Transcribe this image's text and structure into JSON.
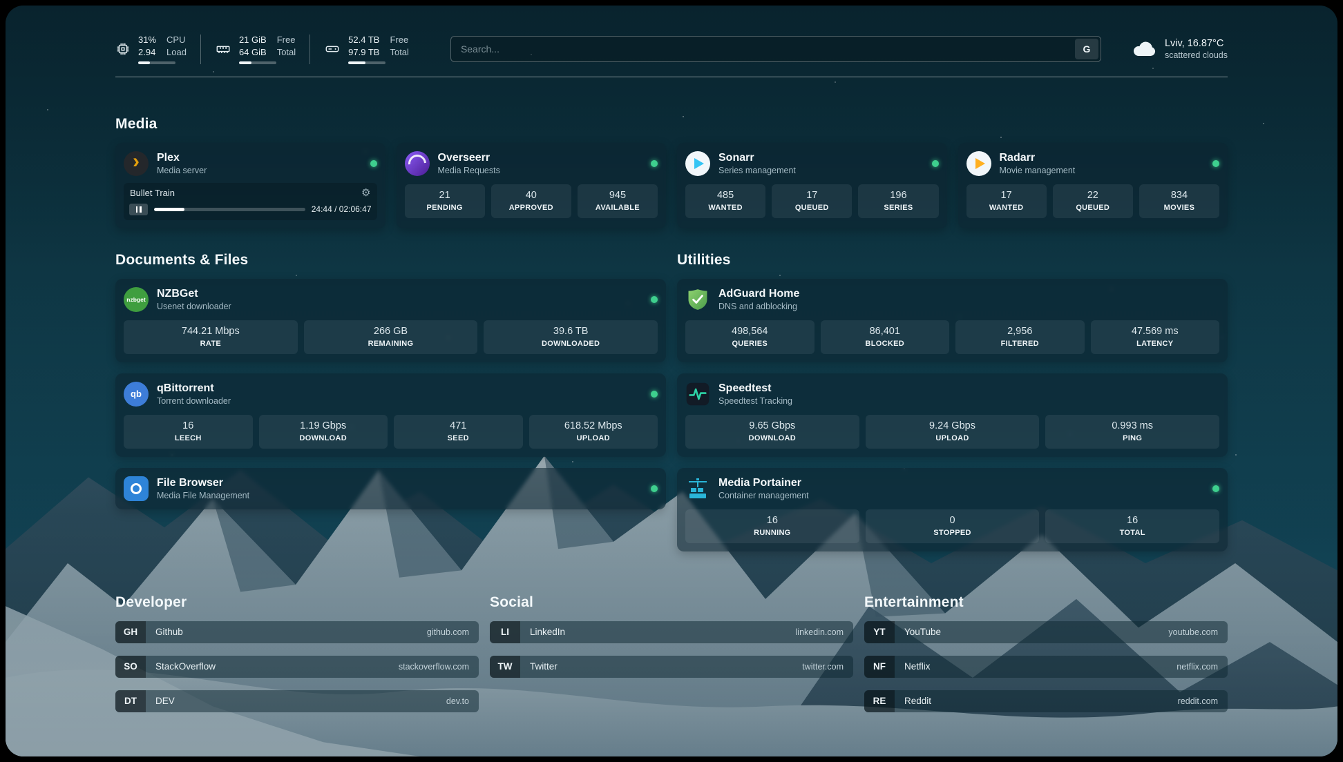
{
  "topbar": {
    "resources": [
      {
        "id": "cpu",
        "value_top": "31%",
        "value_bottom": "2.94",
        "label_top": "CPU",
        "label_bottom": "Load",
        "percent": 31
      },
      {
        "id": "memory",
        "value_top": "21 GiB",
        "value_bottom": "64 GiB",
        "label_top": "Free",
        "label_bottom": "Total",
        "percent": 33
      },
      {
        "id": "disk",
        "value_top": "52.4 TB",
        "value_bottom": "97.9 TB",
        "label_top": "Free",
        "label_bottom": "Total",
        "percent": 46
      }
    ],
    "search": {
      "placeholder": "Search...",
      "engine_button": "G"
    },
    "weather": {
      "location": "Lviv, 16.87°C",
      "condition": "scattered clouds"
    }
  },
  "media": {
    "title": "Media",
    "plex": {
      "name": "Plex",
      "description": "Media server",
      "status": "online",
      "now_playing": {
        "title": "Bullet Train",
        "time": "24:44 / 02:06:47",
        "progress_percent": 20
      }
    },
    "overseerr": {
      "name": "Overseerr",
      "description": "Media Requests",
      "status": "online",
      "stats": [
        {
          "value": "21",
          "label": "PENDING"
        },
        {
          "value": "40",
          "label": "APPROVED"
        },
        {
          "value": "945",
          "label": "AVAILABLE"
        }
      ]
    },
    "sonarr": {
      "name": "Sonarr",
      "description": "Series management",
      "status": "online",
      "stats": [
        {
          "value": "485",
          "label": "WANTED"
        },
        {
          "value": "17",
          "label": "QUEUED"
        },
        {
          "value": "196",
          "label": "SERIES"
        }
      ]
    },
    "radarr": {
      "name": "Radarr",
      "description": "Movie management",
      "status": "online",
      "stats": [
        {
          "value": "17",
          "label": "WANTED"
        },
        {
          "value": "22",
          "label": "QUEUED"
        },
        {
          "value": "834",
          "label": "MOVIES"
        }
      ]
    }
  },
  "documents": {
    "title": "Documents & Files",
    "nzbget": {
      "name": "NZBGet",
      "description": "Usenet downloader",
      "status": "online",
      "icon_text": "nzbget",
      "stats": [
        {
          "value": "744.21 Mbps",
          "label": "RATE"
        },
        {
          "value": "266 GB",
          "label": "REMAINING"
        },
        {
          "value": "39.6 TB",
          "label": "DOWNLOADED"
        }
      ]
    },
    "qbittorrent": {
      "name": "qBittorrent",
      "description": "Torrent downloader",
      "status": "online",
      "icon_text": "qb",
      "stats": [
        {
          "value": "16",
          "label": "LEECH"
        },
        {
          "value": "1.19 Gbps",
          "label": "DOWNLOAD"
        },
        {
          "value": "471",
          "label": "SEED"
        },
        {
          "value": "618.52 Mbps",
          "label": "UPLOAD"
        }
      ]
    },
    "filebrowser": {
      "name": "File Browser",
      "description": "Media File Management",
      "status": "online"
    }
  },
  "utilities": {
    "title": "Utilities",
    "adguard": {
      "name": "AdGuard Home",
      "description": "DNS and adblocking",
      "stats": [
        {
          "value": "498,564",
          "label": "QUERIES"
        },
        {
          "value": "86,401",
          "label": "BLOCKED"
        },
        {
          "value": "2,956",
          "label": "FILTERED"
        },
        {
          "value": "47.569 ms",
          "label": "LATENCY"
        }
      ]
    },
    "speedtest": {
      "name": "Speedtest",
      "description": "Speedtest Tracking",
      "stats": [
        {
          "value": "9.65 Gbps",
          "label": "DOWNLOAD"
        },
        {
          "value": "9.24 Gbps",
          "label": "UPLOAD"
        },
        {
          "value": "0.993 ms",
          "label": "PING"
        }
      ]
    },
    "portainer": {
      "name": "Media Portainer",
      "description": "Container management",
      "status": "online",
      "stats": [
        {
          "value": "16",
          "label": "RUNNING"
        },
        {
          "value": "0",
          "label": "STOPPED"
        },
        {
          "value": "16",
          "label": "TOTAL"
        }
      ]
    }
  },
  "bookmarks": [
    {
      "title": "Developer",
      "items": [
        {
          "abbr": "GH",
          "name": "Github",
          "domain": "github.com"
        },
        {
          "abbr": "SO",
          "name": "StackOverflow",
          "domain": "stackoverflow.com"
        },
        {
          "abbr": "DT",
          "name": "DEV",
          "domain": "dev.to"
        }
      ]
    },
    {
      "title": "Social",
      "items": [
        {
          "abbr": "LI",
          "name": "LinkedIn",
          "domain": "linkedin.com"
        },
        {
          "abbr": "TW",
          "name": "Twitter",
          "domain": "twitter.com"
        }
      ]
    },
    {
      "title": "Entertainment",
      "items": [
        {
          "abbr": "YT",
          "name": "YouTube",
          "domain": "youtube.com"
        },
        {
          "abbr": "NF",
          "name": "Netflix",
          "domain": "netflix.com"
        },
        {
          "abbr": "RE",
          "name": "Reddit",
          "domain": "reddit.com"
        }
      ]
    }
  ],
  "icons": {
    "gear": "⚙",
    "plex_chevron": "›"
  },
  "colors": {
    "status_online": "#3ecf8e",
    "plex_accent": "#e5a00d",
    "overseerr_accent": "#6d28d9",
    "sonarr_accent": "#35c5f4",
    "radarr_accent": "#ffb020",
    "nzbget_accent": "#3f9e3f",
    "qbittorrent_accent": "#3d7dd8",
    "filebrowser_accent": "#2e84d8",
    "adguard_accent": "#5fbb57",
    "speedtest_accent": "#2dd4a7",
    "portainer_accent": "#2ab6d9",
    "background_teal": "#0e3440"
  }
}
